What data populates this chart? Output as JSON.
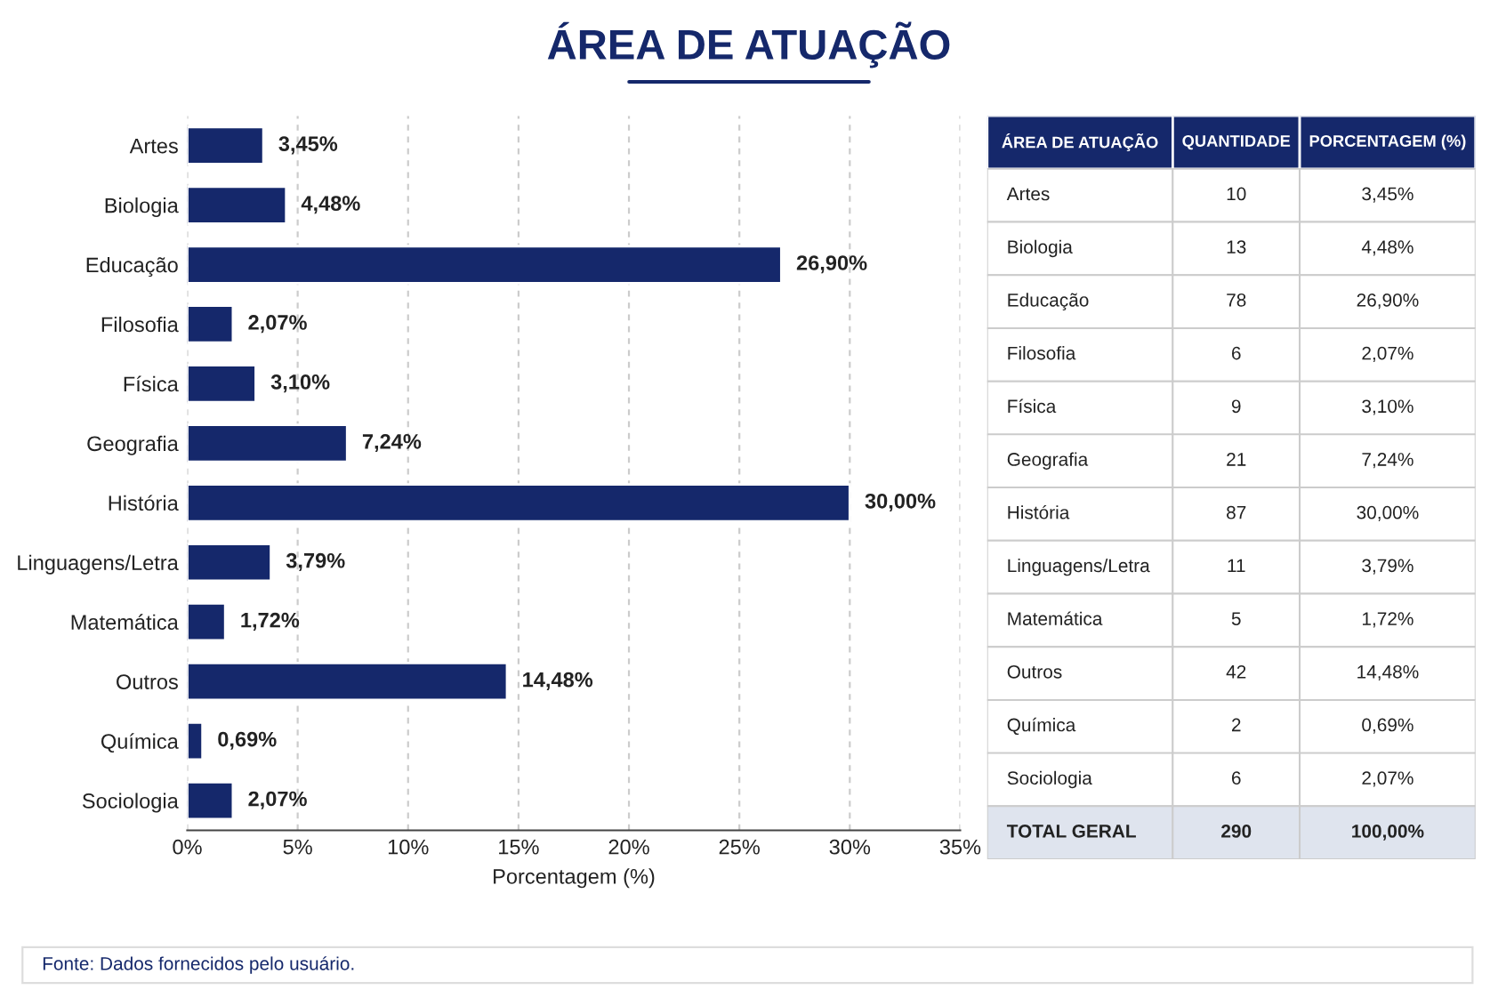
{
  "chart_data": [
    {
      "type": "bar",
      "orientation": "horizontal",
      "title": "ÁREA DE ATUAÇÃO",
      "xlabel": "Porcentagem (%)",
      "categories": [
        "Artes",
        "Biologia",
        "Educação",
        "Filosofia",
        "Física",
        "Geografia",
        "História",
        "Linguagens/Letra",
        "Matemática",
        "Outros",
        "Química",
        "Sociologia"
      ],
      "values": [
        3.45,
        4.48,
        26.9,
        2.07,
        3.1,
        7.24,
        30.0,
        3.79,
        1.72,
        14.48,
        0.69,
        2.07
      ],
      "value_labels": [
        "3,45%",
        "4,48%",
        "26,90%",
        "2,07%",
        "3,10%",
        "7,24%",
        "30,00%",
        "3,79%",
        "1,72%",
        "14,48%",
        "0,69%",
        "2,07%"
      ],
      "color": "#15286b",
      "xlim": [
        0,
        35
      ],
      "xticks": [
        {
          "value": 0,
          "label": "0%"
        },
        {
          "value": 5,
          "label": "5%"
        },
        {
          "value": 10,
          "label": "10%"
        },
        {
          "value": 15,
          "label": "15%"
        },
        {
          "value": 20,
          "label": "20%"
        },
        {
          "value": 25,
          "label": "25%"
        },
        {
          "value": 30,
          "label": "30%"
        },
        {
          "value": 35,
          "label": "35%"
        }
      ],
      "grid": "x",
      "annotations": [
        "Fonte: Dados fornecidos pelo usuário."
      ]
    },
    {
      "type": "other",
      "ylabel": "ÁREA DE ATUAÇÃO",
      "categories": [
        "QUANTIDADE",
        "PORCENTAGEM (%)"
      ],
      "y_categories": [
        "Artes",
        "Biologia",
        "Educação",
        "Filosofia",
        "Física",
        "Geografia",
        "História",
        "Linguagens/Letra",
        "Matemática",
        "Outros",
        "Química",
        "Sociologia",
        "TOTAL GERAL"
      ],
      "cell_labels": [
        [
          "10",
          "3,45%"
        ],
        [
          "13",
          "4,48%"
        ],
        [
          "78",
          "26,90%"
        ],
        [
          "6",
          "2,07%"
        ],
        [
          "9",
          "3,10%"
        ],
        [
          "21",
          "7,24%"
        ],
        [
          "87",
          "30,00%"
        ],
        [
          "11",
          "3,79%"
        ],
        [
          "5",
          "1,72%"
        ],
        [
          "42",
          "14,48%"
        ],
        [
          "2",
          "0,69%"
        ],
        [
          "6",
          "2,07%"
        ],
        [
          "290",
          "100,00%"
        ]
      ],
      "color": "#15286b"
    }
  ]
}
